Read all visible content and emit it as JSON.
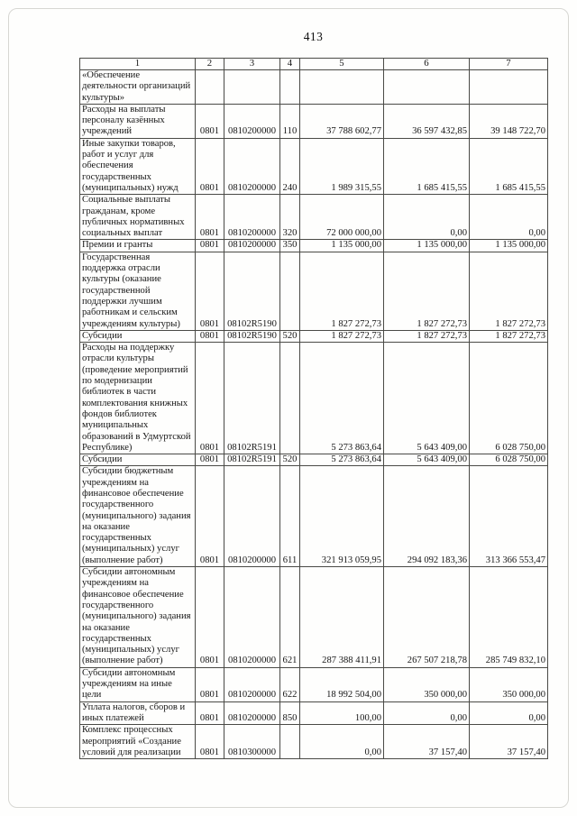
{
  "page": {
    "number": "413"
  },
  "table": {
    "headers": [
      "1",
      "2",
      "3",
      "4",
      "5",
      "6",
      "7"
    ],
    "rows": [
      {
        "cells": [
          "«Обеспечение деятельности организаций культуры»",
          "",
          "",
          "",
          "",
          "",
          ""
        ]
      },
      {
        "cells": [
          "Расходы на выплаты персоналу казённых учреждений",
          "0801",
          "0810200000",
          "110",
          "37 788 602,77",
          "36 597 432,85",
          "39 148 722,70"
        ]
      },
      {
        "cells": [
          "Иные закупки товаров, работ и услуг для обеспечения государственных (муниципальных) нужд",
          "0801",
          "0810200000",
          "240",
          "1 989 315,55",
          "1 685 415,55",
          "1 685 415,55"
        ]
      },
      {
        "cells": [
          "Социальные выплаты гражданам, кроме публичных нормативных социальных выплат",
          "0801",
          "0810200000",
          "320",
          "72 000 000,00",
          "0,00",
          "0,00"
        ]
      },
      {
        "cells": [
          "Премии и гранты",
          "0801",
          "0810200000",
          "350",
          "1 135 000,00",
          "1 135 000,00",
          "1 135 000,00"
        ]
      },
      {
        "cells": [
          "Государственная поддержка отрасли культуры (оказание государственной поддержки лучшим работникам и сельским учреждениям культуры)",
          "0801",
          "08102R5190",
          "",
          "1 827 272,73",
          "1 827 272,73",
          "1 827 272,73"
        ]
      },
      {
        "cells": [
          "Субсидии",
          "0801",
          "08102R5190",
          "520",
          "1 827 272,73",
          "1 827 272,73",
          "1 827 272,73"
        ]
      },
      {
        "cells": [
          "Расходы на поддержку отрасли культуры (проведение мероприятий по модернизации библиотек в части комплектования книжных фондов библиотек муниципальных образований в Удмуртской Республике)",
          "0801",
          "08102R5191",
          "",
          "5 273 863,64",
          "5 643 409,00",
          "6 028 750,00"
        ]
      },
      {
        "cells": [
          "Субсидии",
          "0801",
          "08102R5191",
          "520",
          "5 273 863,64",
          "5 643 409,00",
          "6 028 750,00"
        ]
      },
      {
        "cells": [
          "Субсидии бюджетным учреждениям на финансовое обеспечение государственного (муниципального) задания на оказание государственных (муниципальных) услуг (выполнение работ)",
          "0801",
          "0810200000",
          "611",
          "321 913 059,95",
          "294 092 183,36",
          "313 366 553,47"
        ]
      },
      {
        "cells": [
          "Субсидии автономным учреждениям на финансовое обеспечение государственного (муниципального) задания на оказание государственных (муниципальных) услуг (выполнение работ)",
          "0801",
          "0810200000",
          "621",
          "287 388 411,91",
          "267 507 218,78",
          "285 749 832,10"
        ]
      },
      {
        "cells": [
          "Субсидии автономным учреждениям на иные цели",
          "0801",
          "0810200000",
          "622",
          "18 992 504,00",
          "350 000,00",
          "350 000,00"
        ]
      },
      {
        "cells": [
          "Уплата налогов, сборов и иных платежей",
          "0801",
          "0810200000",
          "850",
          "100,00",
          "0,00",
          "0,00"
        ]
      },
      {
        "cells": [
          "Комплекс процессных мероприятий «Создание условий для реализации",
          "0801",
          "0810300000",
          "",
          "0,00",
          "37 157,40",
          "37 157,40"
        ]
      }
    ]
  }
}
